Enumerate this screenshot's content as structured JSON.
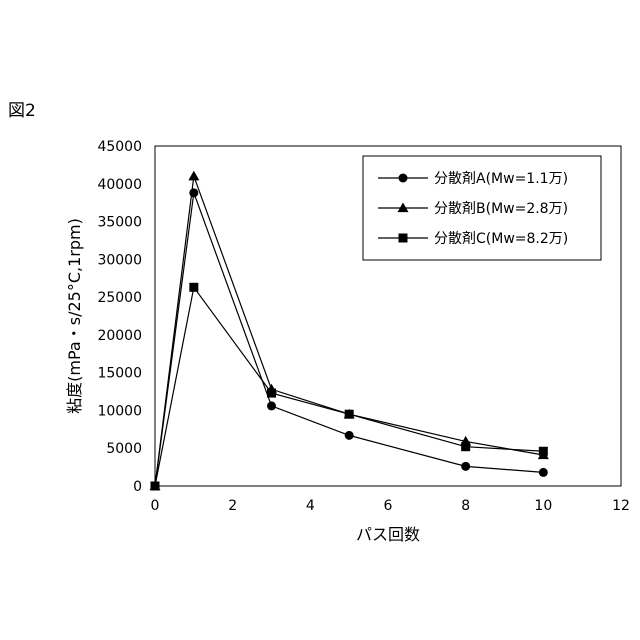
{
  "figure_label": "図2",
  "chart_data": {
    "type": "line",
    "title": "",
    "xlabel": "パス回数",
    "ylabel": "粘度(mPa・s/25°C,1rpm)",
    "xlim": [
      0,
      12
    ],
    "ylim": [
      0,
      45000
    ],
    "x_ticks": [
      0,
      2,
      4,
      6,
      8,
      10,
      12
    ],
    "y_ticks": [
      0,
      5000,
      10000,
      15000,
      20000,
      25000,
      30000,
      35000,
      40000,
      45000
    ],
    "grid": false,
    "legend_position": "top-right",
    "series": [
      {
        "name": "分散剤A(Mw=1.1万)",
        "marker": "circle",
        "x": [
          0,
          1,
          3,
          5,
          8,
          10
        ],
        "y": [
          0,
          38800,
          10600,
          6700,
          2600,
          1800
        ]
      },
      {
        "name": "分散剤B(Mw=2.8万)",
        "marker": "triangle",
        "x": [
          0,
          1,
          3,
          5,
          8,
          10
        ],
        "y": [
          0,
          41000,
          12800,
          9500,
          5900,
          4100
        ]
      },
      {
        "name": "分散剤C(Mw=8.2万)",
        "marker": "square",
        "x": [
          0,
          1,
          3,
          5,
          8,
          10
        ],
        "y": [
          0,
          26300,
          12300,
          9500,
          5200,
          4600
        ]
      }
    ]
  }
}
